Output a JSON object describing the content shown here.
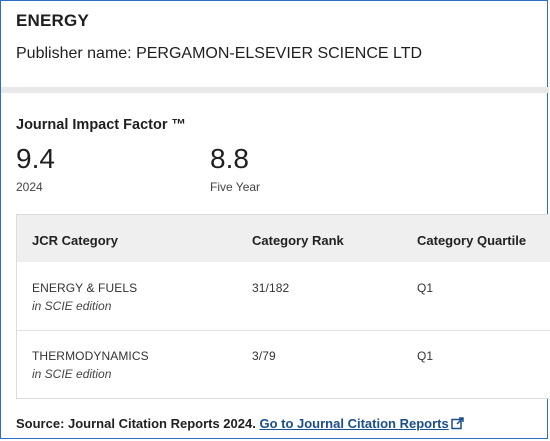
{
  "journal": {
    "title": "ENERGY",
    "publisher_label": "Publisher name: PERGAMON-ELSEVIER SCIENCE LTD"
  },
  "impact": {
    "label": "Journal Impact Factor ™",
    "current_value": "9.4",
    "current_caption": "2024",
    "five_year_value": "8.8",
    "five_year_caption": "Five Year"
  },
  "categories": {
    "headers": [
      "JCR Category",
      "Category Rank",
      "Category Quartile"
    ],
    "rows": [
      {
        "name": "ENERGY & FUELS",
        "edition": "in SCIE edition",
        "rank": "31/182",
        "quartile": "Q1"
      },
      {
        "name": "THERMODYNAMICS",
        "edition": "in SCIE edition",
        "rank": "3/79",
        "quartile": "Q1"
      }
    ]
  },
  "footer": {
    "source_label": "Source: Journal Citation Reports  2024.",
    "link_label": "Go to Journal Citation Reports",
    "link_icon": "external-link-icon"
  },
  "colors": {
    "border": "#2a6fc4",
    "link": "#1a4f8b",
    "header_bg": "#efefef"
  }
}
